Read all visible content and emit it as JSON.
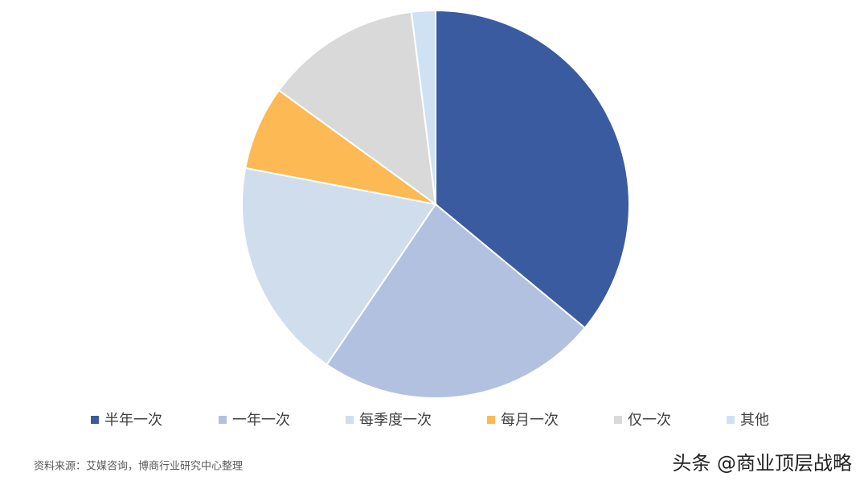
{
  "chart_data": {
    "type": "pie",
    "categories": [
      "半年一次",
      "一年一次",
      "每季度一次",
      "每月一次",
      "仅一次",
      "其他"
    ],
    "values": [
      36,
      23.5,
      18.5,
      7,
      13,
      2
    ],
    "colors": [
      "#3a5ba0",
      "#b3c1e1",
      "#d0dded",
      "#fdb954",
      "#d9d9d9",
      "#cfe2f3"
    ],
    "legend": "bottom",
    "source": "资料来源：艾媒咨询，博商行业研究中心整理",
    "watermark": "头条 @商业顶层战略"
  }
}
